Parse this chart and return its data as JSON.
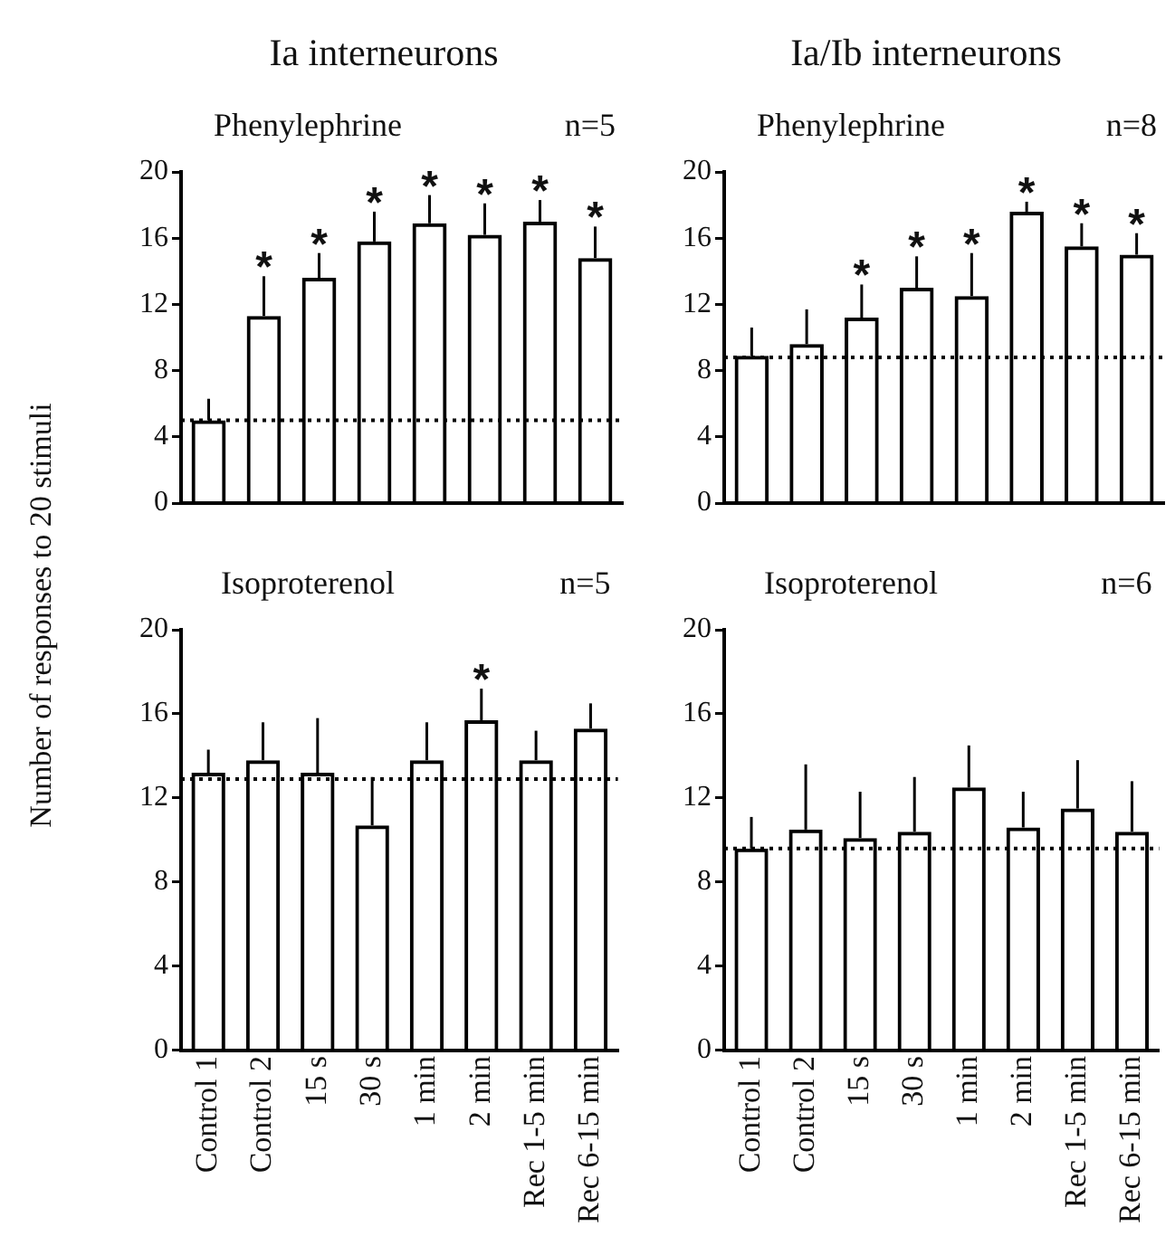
{
  "chart_data": [
    {
      "type": "bar",
      "title": "Ia interneurons",
      "subtitle": "Phenylephrine",
      "ylabel": "Number of responses to 20 stimuli",
      "categories": [
        "Control 1",
        "Control 2",
        "15 s",
        "30 s",
        "1 min",
        "2 min",
        "Rec 1-5 min",
        "Rec 6-15 min"
      ],
      "tick_labels": "y",
      "series": [
        {
          "color": "#000000",
          "values": [
            5.0,
            11.3,
            13.6,
            15.8,
            16.9,
            16.2,
            17.0,
            14.8
          ],
          "errors": [
            [
              5.0,
              6.3
            ],
            [
              11.3,
              13.7
            ],
            [
              13.6,
              15.1
            ],
            [
              15.8,
              17.6
            ],
            [
              16.9,
              18.6
            ],
            [
              16.2,
              18.1
            ],
            [
              17.0,
              18.3
            ],
            [
              14.8,
              16.7
            ]
          ]
        }
      ],
      "ylim": [
        0,
        20
      ],
      "yticks": [
        0,
        4,
        8,
        12,
        16,
        20
      ],
      "grid": false,
      "legend": false,
      "ref_lines": [
        {
          "axis": "y",
          "value": 5.0,
          "line_style": "dotted"
        }
      ],
      "annotations": [
        "n=5",
        {
          "text": "*",
          "x": "Control 2",
          "y": 13.7
        },
        {
          "text": "*",
          "x": "15 s",
          "y": 15.1
        },
        {
          "text": "*",
          "x": "30 s",
          "y": 17.6
        },
        {
          "text": "*",
          "x": "1 min",
          "y": 18.6
        },
        {
          "text": "*",
          "x": "2 min",
          "y": 18.1
        },
        {
          "text": "*",
          "x": "Rec 1-5 min",
          "y": 18.3
        },
        {
          "text": "*",
          "x": "Rec 6-15 min",
          "y": 16.7
        }
      ]
    },
    {
      "type": "bar",
      "title": "Ia/Ib interneurons",
      "subtitle": "Phenylephrine",
      "categories": [
        "Control 1",
        "Control 2",
        "15 s",
        "30 s",
        "1 min",
        "2 min",
        "Rec 1-5 min",
        "Rec 6-15 min"
      ],
      "tick_labels": "y",
      "series": [
        {
          "color": "#000000",
          "values": [
            8.9,
            9.6,
            11.2,
            13.0,
            12.5,
            17.6,
            15.5,
            15.0
          ],
          "errors": [
            [
              8.9,
              10.6
            ],
            [
              9.6,
              11.7
            ],
            [
              11.2,
              13.2
            ],
            [
              13.0,
              14.9
            ],
            [
              12.5,
              15.1
            ],
            [
              17.6,
              18.2
            ],
            [
              15.5,
              16.9
            ],
            [
              15.0,
              16.3
            ]
          ]
        }
      ],
      "ylim": [
        0,
        20
      ],
      "yticks": [
        0,
        4,
        8,
        12,
        16,
        20
      ],
      "grid": false,
      "legend": false,
      "ref_lines": [
        {
          "axis": "y",
          "value": 8.8,
          "line_style": "dotted"
        }
      ],
      "annotations": [
        "n=8",
        {
          "text": "*",
          "x": "15 s",
          "y": 13.2
        },
        {
          "text": "*",
          "x": "30 s",
          "y": 14.9
        },
        {
          "text": "*",
          "x": "1 min",
          "y": 15.1
        },
        {
          "text": "*",
          "x": "2 min",
          "y": 18.2
        },
        {
          "text": "*",
          "x": "Rec 1-5 min",
          "y": 16.9
        },
        {
          "text": "*",
          "x": "Rec 6-15 min",
          "y": 16.3
        }
      ]
    },
    {
      "type": "bar",
      "subtitle": "Isoproterenol",
      "categories": [
        "Control 1",
        "Control 2",
        "15 s",
        "30 s",
        "1 min",
        "2 min",
        "Rec 1-5 min",
        "Rec 6-15 min"
      ],
      "series": [
        {
          "color": "#000000",
          "values": [
            13.2,
            13.8,
            13.2,
            10.7,
            13.8,
            15.7,
            13.8,
            15.3
          ],
          "errors": [
            [
              13.2,
              14.3
            ],
            [
              13.8,
              15.6
            ],
            [
              13.2,
              15.8
            ],
            [
              10.7,
              13.0
            ],
            [
              13.8,
              15.6
            ],
            [
              15.7,
              17.2
            ],
            [
              13.8,
              15.2
            ],
            [
              15.3,
              16.5
            ]
          ]
        }
      ],
      "ylim": [
        0,
        20
      ],
      "yticks": [
        0,
        4,
        8,
        12,
        16,
        20
      ],
      "grid": false,
      "legend": false,
      "ref_lines": [
        {
          "axis": "y",
          "value": 12.9,
          "line_style": "dotted"
        }
      ],
      "annotations": [
        "n=5",
        {
          "text": "*",
          "x": "2 min",
          "y": 17.2
        }
      ]
    },
    {
      "type": "bar",
      "subtitle": "Isoproterenol",
      "categories": [
        "Control 1",
        "Control 2",
        "15 s",
        "30 s",
        "1 min",
        "2 min",
        "Rec 1-5 min",
        "Rec 6-15 min"
      ],
      "series": [
        {
          "color": "#000000",
          "values": [
            9.6,
            10.5,
            10.1,
            10.4,
            12.5,
            10.6,
            11.5,
            10.4
          ],
          "errors": [
            [
              9.6,
              11.1
            ],
            [
              10.5,
              13.6
            ],
            [
              10.1,
              12.3
            ],
            [
              10.4,
              13.0
            ],
            [
              12.5,
              14.5
            ],
            [
              10.6,
              12.3
            ],
            [
              11.5,
              13.8
            ],
            [
              10.4,
              12.8
            ]
          ]
        }
      ],
      "ylim": [
        0,
        20
      ],
      "yticks": [
        0,
        4,
        8,
        12,
        16,
        20
      ],
      "grid": false,
      "legend": false,
      "ref_lines": [
        {
          "axis": "y",
          "value": 9.6,
          "line_style": "dotted"
        }
      ],
      "annotations": [
        "n=6"
      ]
    }
  ]
}
